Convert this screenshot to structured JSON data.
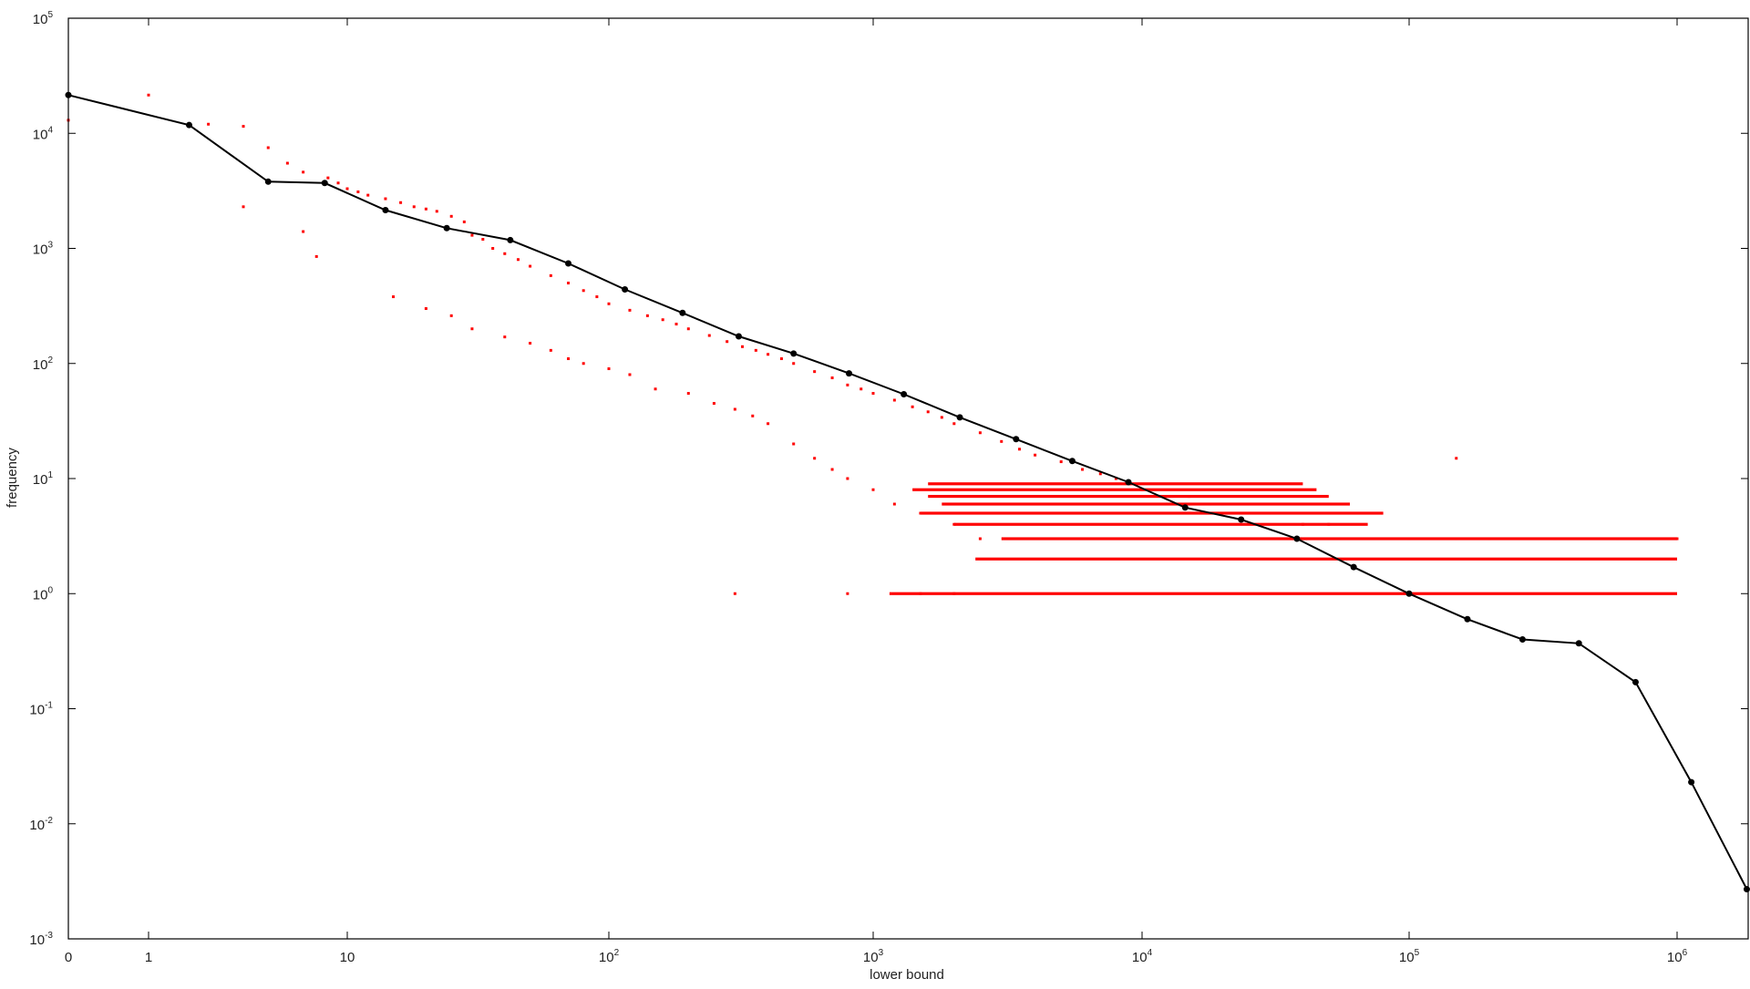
{
  "chart_data": {
    "type": "scatter",
    "title": "",
    "xlabel": "lower bound",
    "ylabel": "frequency",
    "x_scale": "log (with 0 at left edge)",
    "y_scale": "log",
    "xlim": [
      0,
      1800000
    ],
    "ylim": [
      0.001,
      100000
    ],
    "grid": false,
    "legend": "none",
    "colors": {
      "scatter": "#ff0000",
      "line": "#000000",
      "axes": "#000000"
    },
    "x_tick_labels": [
      {
        "value": 0,
        "base": "0",
        "exp": ""
      },
      {
        "value": 1,
        "base": "1",
        "exp": ""
      },
      {
        "value": 10,
        "base": "10",
        "exp": ""
      },
      {
        "value": 100,
        "base": "10",
        "exp": "2"
      },
      {
        "value": 1000,
        "base": "10",
        "exp": "3"
      },
      {
        "value": 10000,
        "base": "10",
        "exp": "4"
      },
      {
        "value": 100000,
        "base": "10",
        "exp": "5"
      },
      {
        "value": 1000000,
        "base": "10",
        "exp": "6"
      }
    ],
    "y_tick_labels": [
      {
        "value": 100000,
        "base": "10",
        "exp": "5"
      },
      {
        "value": 10000,
        "base": "10",
        "exp": "4"
      },
      {
        "value": 1000,
        "base": "10",
        "exp": "3"
      },
      {
        "value": 100,
        "base": "10",
        "exp": "2"
      },
      {
        "value": 10,
        "base": "10",
        "exp": "1"
      },
      {
        "value": 1,
        "base": "10",
        "exp": "0"
      },
      {
        "value": 0.1,
        "base": "10",
        "exp": "-1"
      },
      {
        "value": 0.01,
        "base": "10",
        "exp": "-2"
      },
      {
        "value": 0.001,
        "base": "10",
        "exp": "-3"
      }
    ],
    "series": [
      {
        "kind": "line",
        "x": [
          0,
          1.6,
          4,
          7.7,
          14,
          24,
          42,
          70,
          115,
          190,
          310,
          500,
          810,
          1300,
          2100,
          3400,
          5500,
          8900,
          14500,
          23500,
          38000,
          62000,
          100000,
          165000,
          265000,
          430000,
          700000,
          1130000,
          1820000
        ],
        "y": [
          21500,
          11800,
          3800,
          3700,
          2150,
          1500,
          1180,
          740,
          440,
          275,
          172,
          122,
          82,
          54,
          34,
          22,
          14.2,
          9.3,
          5.6,
          4.4,
          3.0,
          1.7,
          1.0,
          0.6,
          0.4,
          0.37,
          0.17,
          0.023,
          0.0027
        ]
      },
      {
        "kind": "scatter",
        "name": "",
        "x": [
          0,
          0,
          1,
          2,
          3,
          3,
          4,
          5,
          6,
          6,
          7,
          8,
          9,
          10,
          11,
          12,
          14,
          16,
          18,
          20,
          22,
          25,
          28,
          30,
          33,
          36,
          40,
          45,
          50,
          60,
          70,
          80,
          90,
          100,
          120,
          140,
          160,
          180,
          200,
          240,
          280,
          320,
          360,
          400,
          450,
          500,
          600,
          700,
          800,
          900,
          1000,
          1200,
          1400,
          1600,
          1800,
          2000,
          2500,
          3000,
          3500,
          4000,
          5000,
          6000,
          7000,
          8000,
          9000,
          10000,
          12000,
          15000,
          18000,
          20000,
          25000,
          30000,
          40000,
          50000,
          100000,
          150000,
          200000,
          350000,
          600000,
          1000000,
          15,
          20,
          25,
          30,
          40,
          50,
          60,
          70,
          80,
          100,
          120,
          150,
          200,
          250,
          300,
          350,
          400,
          500,
          600,
          700,
          800,
          1000,
          1200,
          1500,
          2000,
          2500,
          300,
          800,
          1500,
          2000,
          150000
        ],
        "y": [
          22000,
          13000,
          21500,
          12000,
          11500,
          2300,
          7500,
          5500,
          1400,
          4600,
          850,
          4100,
          3700,
          3300,
          3100,
          2900,
          2700,
          2500,
          2300,
          2200,
          2100,
          1900,
          1700,
          1300,
          1200,
          1000,
          900,
          800,
          700,
          580,
          500,
          430,
          380,
          330,
          290,
          260,
          240,
          220,
          200,
          175,
          155,
          140,
          130,
          120,
          110,
          100,
          85,
          75,
          65,
          60,
          55,
          48,
          42,
          38,
          34,
          30,
          25,
          21,
          18,
          16,
          14,
          12,
          11,
          10,
          9,
          8,
          7,
          7,
          6,
          6,
          5,
          5,
          4,
          4,
          3,
          3,
          3,
          3,
          3,
          3,
          380,
          300,
          260,
          200,
          170,
          150,
          130,
          110,
          100,
          90,
          80,
          60,
          55,
          45,
          40,
          35,
          30,
          20,
          15,
          12,
          10,
          8,
          6,
          5,
          4,
          3,
          1,
          1,
          1,
          1,
          15
        ],
        "note_fill": "dense horizontal bands of points at integer frequencies 1–9 between x≈1000 and x≈1000000"
      }
    ]
  }
}
